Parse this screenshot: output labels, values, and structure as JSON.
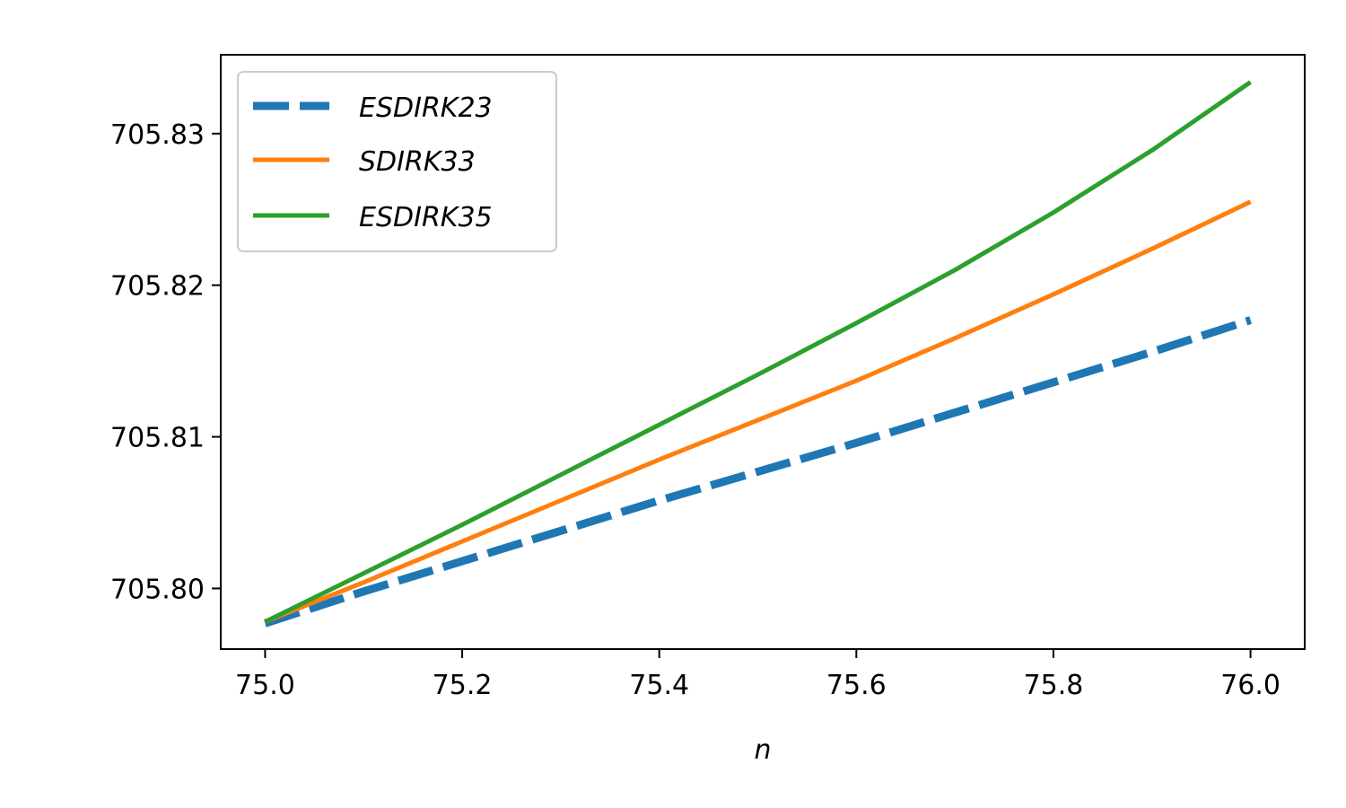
{
  "chart_data": {
    "type": "line",
    "xlabel": "n",
    "ylabel": "",
    "xlim": [
      74.955,
      76.055
    ],
    "ylim": [
      705.796,
      705.8352
    ],
    "xticks": [
      75.0,
      75.2,
      75.4,
      75.6,
      75.8,
      76.0
    ],
    "xtick_labels": [
      "75.0",
      "75.2",
      "75.4",
      "75.6",
      "75.8",
      "76.0"
    ],
    "yticks": [
      705.8,
      705.81,
      705.82,
      705.83
    ],
    "ytick_labels": [
      "705.80",
      "705.81",
      "705.82",
      "705.83"
    ],
    "grid": false,
    "legend_position": "upper-left",
    "x": [
      75.0,
      75.1,
      75.2,
      75.3,
      75.4,
      75.5,
      75.6,
      75.7,
      75.8,
      75.9,
      76.0
    ],
    "series": [
      {
        "name": "ESDIRK23",
        "color": "#1f77b4",
        "style": "dashed",
        "values": [
          705.7977,
          705.7998,
          705.8018,
          705.8038,
          705.8058,
          705.8077,
          705.8096,
          705.8116,
          705.8136,
          705.8156,
          705.8177
        ]
      },
      {
        "name": "SDIRK33",
        "color": "#ff7f0e",
        "style": "solid",
        "values": [
          705.7978,
          705.8004,
          705.8031,
          705.8058,
          705.8085,
          705.8111,
          705.8137,
          705.8165,
          705.8194,
          705.8224,
          705.8255
        ]
      },
      {
        "name": "ESDIRK35",
        "color": "#2ca02c",
        "style": "solid",
        "values": [
          705.7978,
          705.801,
          705.8042,
          705.8075,
          705.8108,
          705.8141,
          705.8175,
          705.821,
          705.8248,
          705.8289,
          705.8334
        ]
      }
    ]
  }
}
